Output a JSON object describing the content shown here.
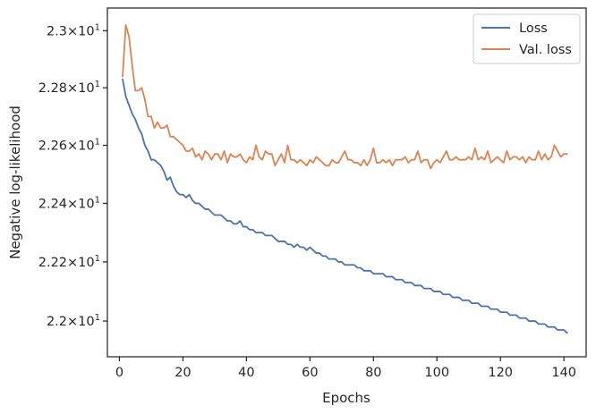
{
  "chart_data": {
    "type": "line",
    "title": "",
    "xlabel": "Epochs",
    "ylabel": "Negative log-likelihood",
    "x_ticks": [
      0,
      20,
      40,
      60,
      80,
      100,
      120,
      140
    ],
    "y_ticks": [
      {
        "value": 22.0,
        "base": "2.2",
        "times": "×",
        "exp_base": "10",
        "exp": "1"
      },
      {
        "value": 22.2,
        "base": "2.22",
        "times": "×",
        "exp_base": "10",
        "exp": "1"
      },
      {
        "value": 22.4,
        "base": "2.24",
        "times": "×",
        "exp_base": "10",
        "exp": "1"
      },
      {
        "value": 22.6,
        "base": "2.26",
        "times": "×",
        "exp_base": "10",
        "exp": "1"
      },
      {
        "value": 22.8,
        "base": "2.28",
        "times": "×",
        "exp_base": "10",
        "exp": "1"
      },
      {
        "value": 23.0,
        "base": "2.3",
        "times": "×",
        "exp_base": "10",
        "exp": "1"
      }
    ],
    "y_scale": "log",
    "xlim": [
      -3.8,
      147
    ],
    "ylim": [
      21.88,
      23.08
    ],
    "grid": false,
    "legend_position": "top-right",
    "series": [
      {
        "name": "Loss",
        "color": "#4c72b0",
        "values": [
          22.83,
          22.77,
          22.74,
          22.71,
          22.69,
          22.66,
          22.64,
          22.6,
          22.58,
          22.55,
          22.55,
          22.54,
          22.53,
          22.51,
          22.48,
          22.49,
          22.46,
          22.44,
          22.43,
          22.43,
          22.42,
          22.43,
          22.41,
          22.4,
          22.4,
          22.39,
          22.38,
          22.38,
          22.37,
          22.36,
          22.36,
          22.36,
          22.35,
          22.34,
          22.34,
          22.33,
          22.33,
          22.34,
          22.32,
          22.32,
          22.31,
          22.31,
          22.3,
          22.3,
          22.3,
          22.29,
          22.29,
          22.29,
          22.28,
          22.27,
          22.27,
          22.27,
          22.26,
          22.26,
          22.25,
          22.26,
          22.25,
          22.25,
          22.24,
          22.25,
          22.24,
          22.23,
          22.23,
          22.22,
          22.22,
          22.21,
          22.21,
          22.21,
          22.2,
          22.2,
          22.19,
          22.19,
          22.19,
          22.19,
          22.18,
          22.18,
          22.17,
          22.17,
          22.17,
          22.16,
          22.16,
          22.16,
          22.16,
          22.15,
          22.15,
          22.15,
          22.14,
          22.14,
          22.14,
          22.13,
          22.13,
          22.13,
          22.12,
          22.12,
          22.12,
          22.11,
          22.11,
          22.11,
          22.1,
          22.1,
          22.1,
          22.09,
          22.09,
          22.09,
          22.08,
          22.08,
          22.08,
          22.07,
          22.07,
          22.07,
          22.06,
          22.06,
          22.06,
          22.05,
          22.05,
          22.05,
          22.04,
          22.04,
          22.04,
          22.03,
          22.03,
          22.03,
          22.02,
          22.02,
          22.02,
          22.01,
          22.01,
          22.01,
          22.0,
          22.0,
          22.0,
          21.99,
          21.99,
          21.99,
          21.98,
          21.98,
          21.98,
          21.97,
          21.97,
          21.97,
          21.96
        ]
      },
      {
        "name": "Val. loss",
        "color": "#dd8452",
        "values": [
          22.84,
          23.02,
          22.98,
          22.88,
          22.79,
          22.79,
          22.8,
          22.76,
          22.7,
          22.7,
          22.66,
          22.68,
          22.66,
          22.66,
          22.67,
          22.63,
          22.63,
          22.62,
          22.61,
          22.6,
          22.58,
          22.58,
          22.59,
          22.56,
          22.57,
          22.55,
          22.58,
          22.57,
          22.55,
          22.57,
          22.57,
          22.55,
          22.58,
          22.54,
          22.57,
          22.56,
          22.56,
          22.57,
          22.55,
          22.54,
          22.56,
          22.55,
          22.6,
          22.56,
          22.55,
          22.58,
          22.57,
          22.57,
          22.53,
          22.55,
          22.57,
          22.54,
          22.6,
          22.55,
          22.55,
          22.54,
          22.55,
          22.54,
          22.53,
          22.55,
          22.54,
          22.56,
          22.55,
          22.54,
          22.53,
          22.53,
          22.55,
          22.54,
          22.54,
          22.56,
          22.58,
          22.55,
          22.55,
          22.54,
          22.54,
          22.53,
          22.55,
          22.53,
          22.55,
          22.59,
          22.54,
          22.54,
          22.55,
          22.54,
          22.55,
          22.53,
          22.55,
          22.55,
          22.55,
          22.56,
          22.54,
          22.55,
          22.55,
          22.58,
          22.54,
          22.55,
          22.55,
          22.52,
          22.54,
          22.55,
          22.54,
          22.56,
          22.58,
          22.55,
          22.55,
          22.56,
          22.55,
          22.55,
          22.55,
          22.56,
          22.55,
          22.59,
          22.55,
          22.56,
          22.55,
          22.58,
          22.54,
          22.55,
          22.56,
          22.55,
          22.54,
          22.58,
          22.55,
          22.56,
          22.56,
          22.55,
          22.56,
          22.54,
          22.56,
          22.55,
          22.55,
          22.58,
          22.55,
          22.57,
          22.55,
          22.56,
          22.6,
          22.58,
          22.56,
          22.57,
          22.57
        ]
      }
    ]
  }
}
